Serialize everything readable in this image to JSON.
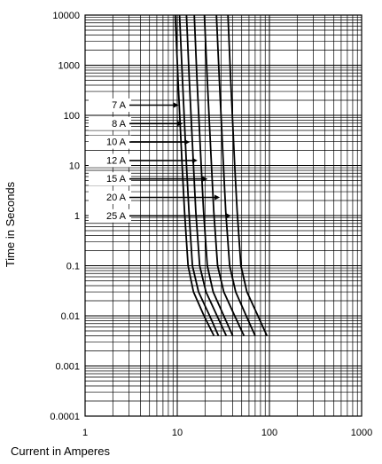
{
  "chart_data": {
    "type": "line",
    "title": "",
    "xlabel": "Current in Amperes",
    "ylabel": "Time in Seconds",
    "x_scale": "log",
    "y_scale": "log",
    "xlim": [
      1,
      1000
    ],
    "ylim": [
      0.0001,
      10000
    ],
    "grid": true,
    "x_ticks": [
      {
        "value": 1,
        "label": "1"
      },
      {
        "value": 10,
        "label": "10"
      },
      {
        "value": 100,
        "label": "100"
      },
      {
        "value": 1000,
        "label": "1000"
      }
    ],
    "y_ticks": [
      {
        "value": 10000,
        "label": "10000"
      },
      {
        "value": 1000,
        "label": "1000"
      },
      {
        "value": 100,
        "label": "100"
      },
      {
        "value": 10,
        "label": "10"
      },
      {
        "value": 1,
        "label": "1"
      },
      {
        "value": 0.1,
        "label": "0.1"
      },
      {
        "value": 0.01,
        "label": "0.01"
      },
      {
        "value": 0.001,
        "label": "0.001"
      },
      {
        "value": 0.0001,
        "label": "0.0001"
      }
    ],
    "legend_position": "left-inside",
    "series": [
      {
        "name": "7 A",
        "arrow_at": 10.4,
        "points": [
          [
            9.5,
            10000
          ],
          [
            10.2,
            500
          ],
          [
            11.3,
            10
          ],
          [
            12,
            1.2
          ],
          [
            13.1,
            0.1
          ],
          [
            15,
            0.03
          ],
          [
            19.5,
            0.01
          ],
          [
            25,
            0.004
          ]
        ]
      },
      {
        "name": "8 A",
        "arrow_at": 11.5,
        "points": [
          [
            10.6,
            10000
          ],
          [
            11.4,
            500
          ],
          [
            12.6,
            10
          ],
          [
            13.4,
            1.2
          ],
          [
            14.6,
            0.1
          ],
          [
            17,
            0.03
          ],
          [
            22.5,
            0.01
          ],
          [
            28,
            0.004
          ]
        ]
      },
      {
        "name": "10 A",
        "arrow_at": 13.7,
        "points": [
          [
            12.6,
            10000
          ],
          [
            13.5,
            500
          ],
          [
            15,
            10
          ],
          [
            15.9,
            1.2
          ],
          [
            17.5,
            0.1
          ],
          [
            20.5,
            0.03
          ],
          [
            27,
            0.01
          ],
          [
            34,
            0.004
          ]
        ]
      },
      {
        "name": "12 A",
        "arrow_at": 16.6,
        "points": [
          [
            15.3,
            10000
          ],
          [
            16.4,
            500
          ],
          [
            18.2,
            10
          ],
          [
            19.3,
            1.2
          ],
          [
            21.2,
            0.1
          ],
          [
            24.5,
            0.03
          ],
          [
            32,
            0.01
          ],
          [
            40,
            0.004
          ]
        ]
      },
      {
        "name": "15 A",
        "arrow_at": 21.4,
        "points": [
          [
            19.7,
            10000
          ],
          [
            21.2,
            500
          ],
          [
            23.5,
            10
          ],
          [
            24.9,
            1.2
          ],
          [
            27.4,
            0.1
          ],
          [
            32,
            0.03
          ],
          [
            42,
            0.01
          ],
          [
            53,
            0.004
          ]
        ]
      },
      {
        "name": "20 A",
        "arrow_at": 29,
        "points": [
          [
            26.6,
            10000
          ],
          [
            28.6,
            500
          ],
          [
            31.7,
            10
          ],
          [
            33.6,
            1.2
          ],
          [
            37,
            0.1
          ],
          [
            43,
            0.03
          ],
          [
            56,
            0.01
          ],
          [
            70,
            0.004
          ]
        ]
      },
      {
        "name": "25 A",
        "arrow_at": 38.5,
        "points": [
          [
            35.5,
            10000
          ],
          [
            38,
            500
          ],
          [
            42,
            10
          ],
          [
            44.7,
            1.2
          ],
          [
            49,
            0.1
          ],
          [
            57,
            0.03
          ],
          [
            75,
            0.01
          ],
          [
            94,
            0.004
          ]
        ]
      }
    ]
  }
}
